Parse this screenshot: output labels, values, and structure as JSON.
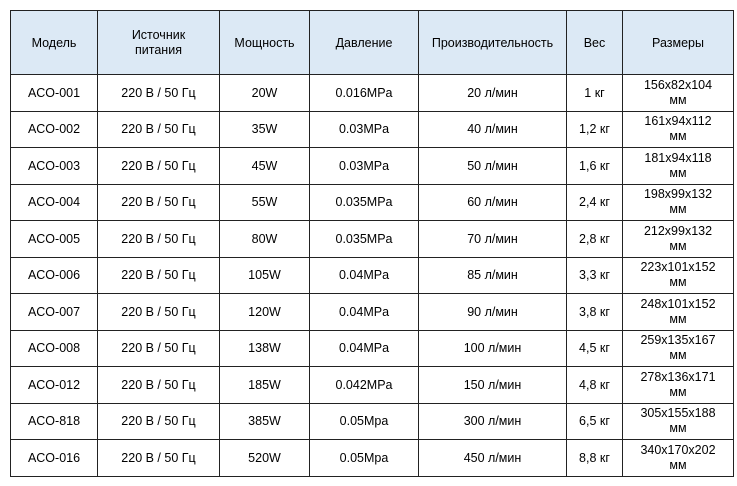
{
  "table": {
    "header": [
      "Модель",
      "Источник питания",
      "Мощность",
      "Давление",
      "Производительность",
      "Вес",
      "Размеры"
    ],
    "rows": [
      [
        "ACO-001",
        "220 В / 50 Гц",
        "20W",
        "0.016MPa",
        "20 л/мин",
        "1 кг",
        "156x82x104 мм"
      ],
      [
        "ACO-002",
        "220 В / 50 Гц",
        "35W",
        "0.03MPa",
        "40 л/мин",
        "1,2 кг",
        "161x94x112 мм"
      ],
      [
        "ACO-003",
        "220 В / 50 Гц",
        "45W",
        "0.03MPa",
        "50 л/мин",
        "1,6 кг",
        "181x94x118 мм"
      ],
      [
        "ACO-004",
        "220 В / 50 Гц",
        "55W",
        "0.035MPa",
        "60 л/мин",
        "2,4 кг",
        "198x99x132 мм"
      ],
      [
        "ACO-005",
        "220 В / 50 Гц",
        "80W",
        "0.035MPa",
        "70 л/мин",
        "2,8 кг",
        "212x99x132 мм"
      ],
      [
        "ACO-006",
        "220 В / 50 Гц",
        "105W",
        "0.04MPa",
        "85 л/мин",
        "3,3 кг",
        "223x101x152 мм"
      ],
      [
        "ACO-007",
        "220 В / 50 Гц",
        "120W",
        "0.04MPa",
        "90 л/мин",
        "3,8 кг",
        "248x101x152 мм"
      ],
      [
        "ACO-008",
        "220 В / 50 Гц",
        "138W",
        "0.04MPa",
        "100 л/мин",
        "4,5 кг",
        "259x135x167 мм"
      ],
      [
        "ACO-012",
        "220 В / 50 Гц",
        "185W",
        "0.042MPa",
        "150 л/мин",
        "4,8 кг",
        "278x136x171 мм"
      ],
      [
        "ACO-818",
        "220 В / 50 Гц",
        "385W",
        "0.05Mpa",
        "300 л/мин",
        "6,5 кг",
        "305x155x188 мм"
      ],
      [
        "ACO-016",
        "220 В / 50 Гц",
        "520W",
        "0.05Mpa",
        "450 л/мин",
        "8,8 кг",
        "340x170x202 мм"
      ]
    ]
  }
}
